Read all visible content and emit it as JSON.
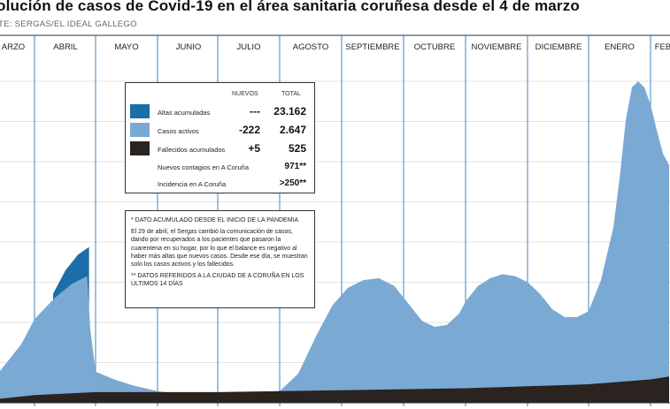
{
  "header": {
    "title": "olución de casos de Covid-19 en el área sanitaria coruñesa desde el 4 de marzo",
    "source": "TE: SERGAS/EL IDEAL GALLEGO"
  },
  "legend": {
    "col_new": "NUEVOS",
    "col_total": "TOTAL",
    "rows": [
      {
        "label": "Altas acumuladas",
        "new": "---",
        "total": "23.162",
        "color": "#1b6ea8"
      },
      {
        "label": "Casos activos",
        "new": "-222",
        "total": "2.647",
        "color": "#7aa9d4"
      },
      {
        "label": "Fallecidos acumulados",
        "new": "+5",
        "total": "525",
        "color": "#2a2320"
      },
      {
        "label": "Nuevos contagios en A Coruña",
        "new": "",
        "total": "971**"
      },
      {
        "label": "Incidencia en A Coruña",
        "new": "",
        "total": ">250**"
      }
    ]
  },
  "notes": {
    "n1": "* DATO ACUMULADO DESDE EL INICIO DE LA PANDEMIA",
    "n2": "El 29 de abril, el Sergas cambió la comunicación de casos, dando por recuperados a los pacientes que pasaron la cuarentena en su hogar, por lo que el balance es negativo al haber más altas que nuevos casos. Desde ese día, se muestran solo los casos activos y los fallecidos.",
    "n3": "** DATOS REFERIDOS A LA CIUDAD DE A CORUÑA EN LOS ÚLTIMOS 14 DÍAS"
  },
  "chart_data": {
    "type": "area",
    "months": [
      "MARZO",
      "ABRIL",
      "MAYO",
      "JUNIO",
      "JULIO",
      "AGOSTO",
      "SEPTIEMBRE",
      "OCTUBRE",
      "NOVIEMBRE",
      "DICIEMBRE",
      "ENERO",
      "FEBRERO"
    ],
    "month_label_text": [
      "ARZO",
      "ABRIL",
      "MAYO",
      "JUNIO",
      "JULIO",
      "AGOSTO",
      "SEPTIEMBRE",
      "OCTUBRE",
      "NOVIEMBRE",
      "DICIEMBRE",
      "ENERO",
      "FEB"
    ],
    "colors": {
      "altas": "#1b6ea8",
      "activos": "#7aa9d4",
      "fallecidos": "#2a2320",
      "grid": "#d8d8d8",
      "divider": "#3d86bf"
    },
    "series": [
      {
        "name": "Casos activos",
        "points": [
          [
            0.0,
            0.2
          ],
          [
            0.4,
            1.4
          ],
          [
            0.8,
            3.0
          ],
          [
            1.0,
            4.3
          ],
          [
            1.3,
            5.3
          ],
          [
            1.6,
            6.1
          ],
          [
            1.85,
            6.5
          ],
          [
            1.9,
            3.8
          ],
          [
            2.0,
            1.6
          ],
          [
            2.3,
            1.2
          ],
          [
            2.6,
            0.9
          ],
          [
            3.0,
            0.6
          ],
          [
            3.5,
            0.4
          ],
          [
            4.0,
            0.35
          ],
          [
            4.5,
            0.4
          ],
          [
            5.0,
            0.6
          ],
          [
            5.3,
            1.5
          ],
          [
            5.6,
            3.5
          ],
          [
            5.85,
            5.0
          ],
          [
            6.1,
            5.9
          ],
          [
            6.35,
            6.3
          ],
          [
            6.6,
            6.4
          ],
          [
            6.85,
            6.0
          ],
          [
            7.1,
            5.0
          ],
          [
            7.3,
            4.2
          ],
          [
            7.5,
            3.9
          ],
          [
            7.7,
            4.0
          ],
          [
            7.9,
            4.6
          ],
          [
            8.0,
            5.2
          ],
          [
            8.2,
            6.0
          ],
          [
            8.4,
            6.4
          ],
          [
            8.6,
            6.6
          ],
          [
            8.8,
            6.5
          ],
          [
            9.0,
            6.2
          ],
          [
            9.2,
            5.6
          ],
          [
            9.4,
            4.8
          ],
          [
            9.6,
            4.4
          ],
          [
            9.8,
            4.4
          ],
          [
            10.0,
            4.7
          ],
          [
            10.2,
            6.3
          ],
          [
            10.4,
            9.0
          ],
          [
            10.5,
            11.5
          ],
          [
            10.6,
            14.5
          ],
          [
            10.7,
            16.2
          ],
          [
            10.8,
            16.5
          ],
          [
            10.9,
            16.2
          ],
          [
            11.0,
            15.3
          ],
          [
            11.1,
            14.0
          ],
          [
            11.2,
            12.8
          ],
          [
            11.3,
            12.2
          ]
        ]
      },
      {
        "name": "Altas acumuladas",
        "points": [
          [
            1.3,
            5.6
          ],
          [
            1.5,
            6.8
          ],
          [
            1.7,
            7.6
          ],
          [
            1.88,
            8.0
          ]
        ]
      },
      {
        "name": "Fallecidos acumulados",
        "points": [
          [
            0.0,
            0.05
          ],
          [
            1.0,
            0.4
          ],
          [
            2.0,
            0.55
          ],
          [
            4.0,
            0.55
          ],
          [
            6.0,
            0.65
          ],
          [
            8.0,
            0.75
          ],
          [
            10.0,
            0.95
          ],
          [
            11.0,
            1.2
          ],
          [
            11.3,
            1.35
          ]
        ]
      }
    ]
  }
}
